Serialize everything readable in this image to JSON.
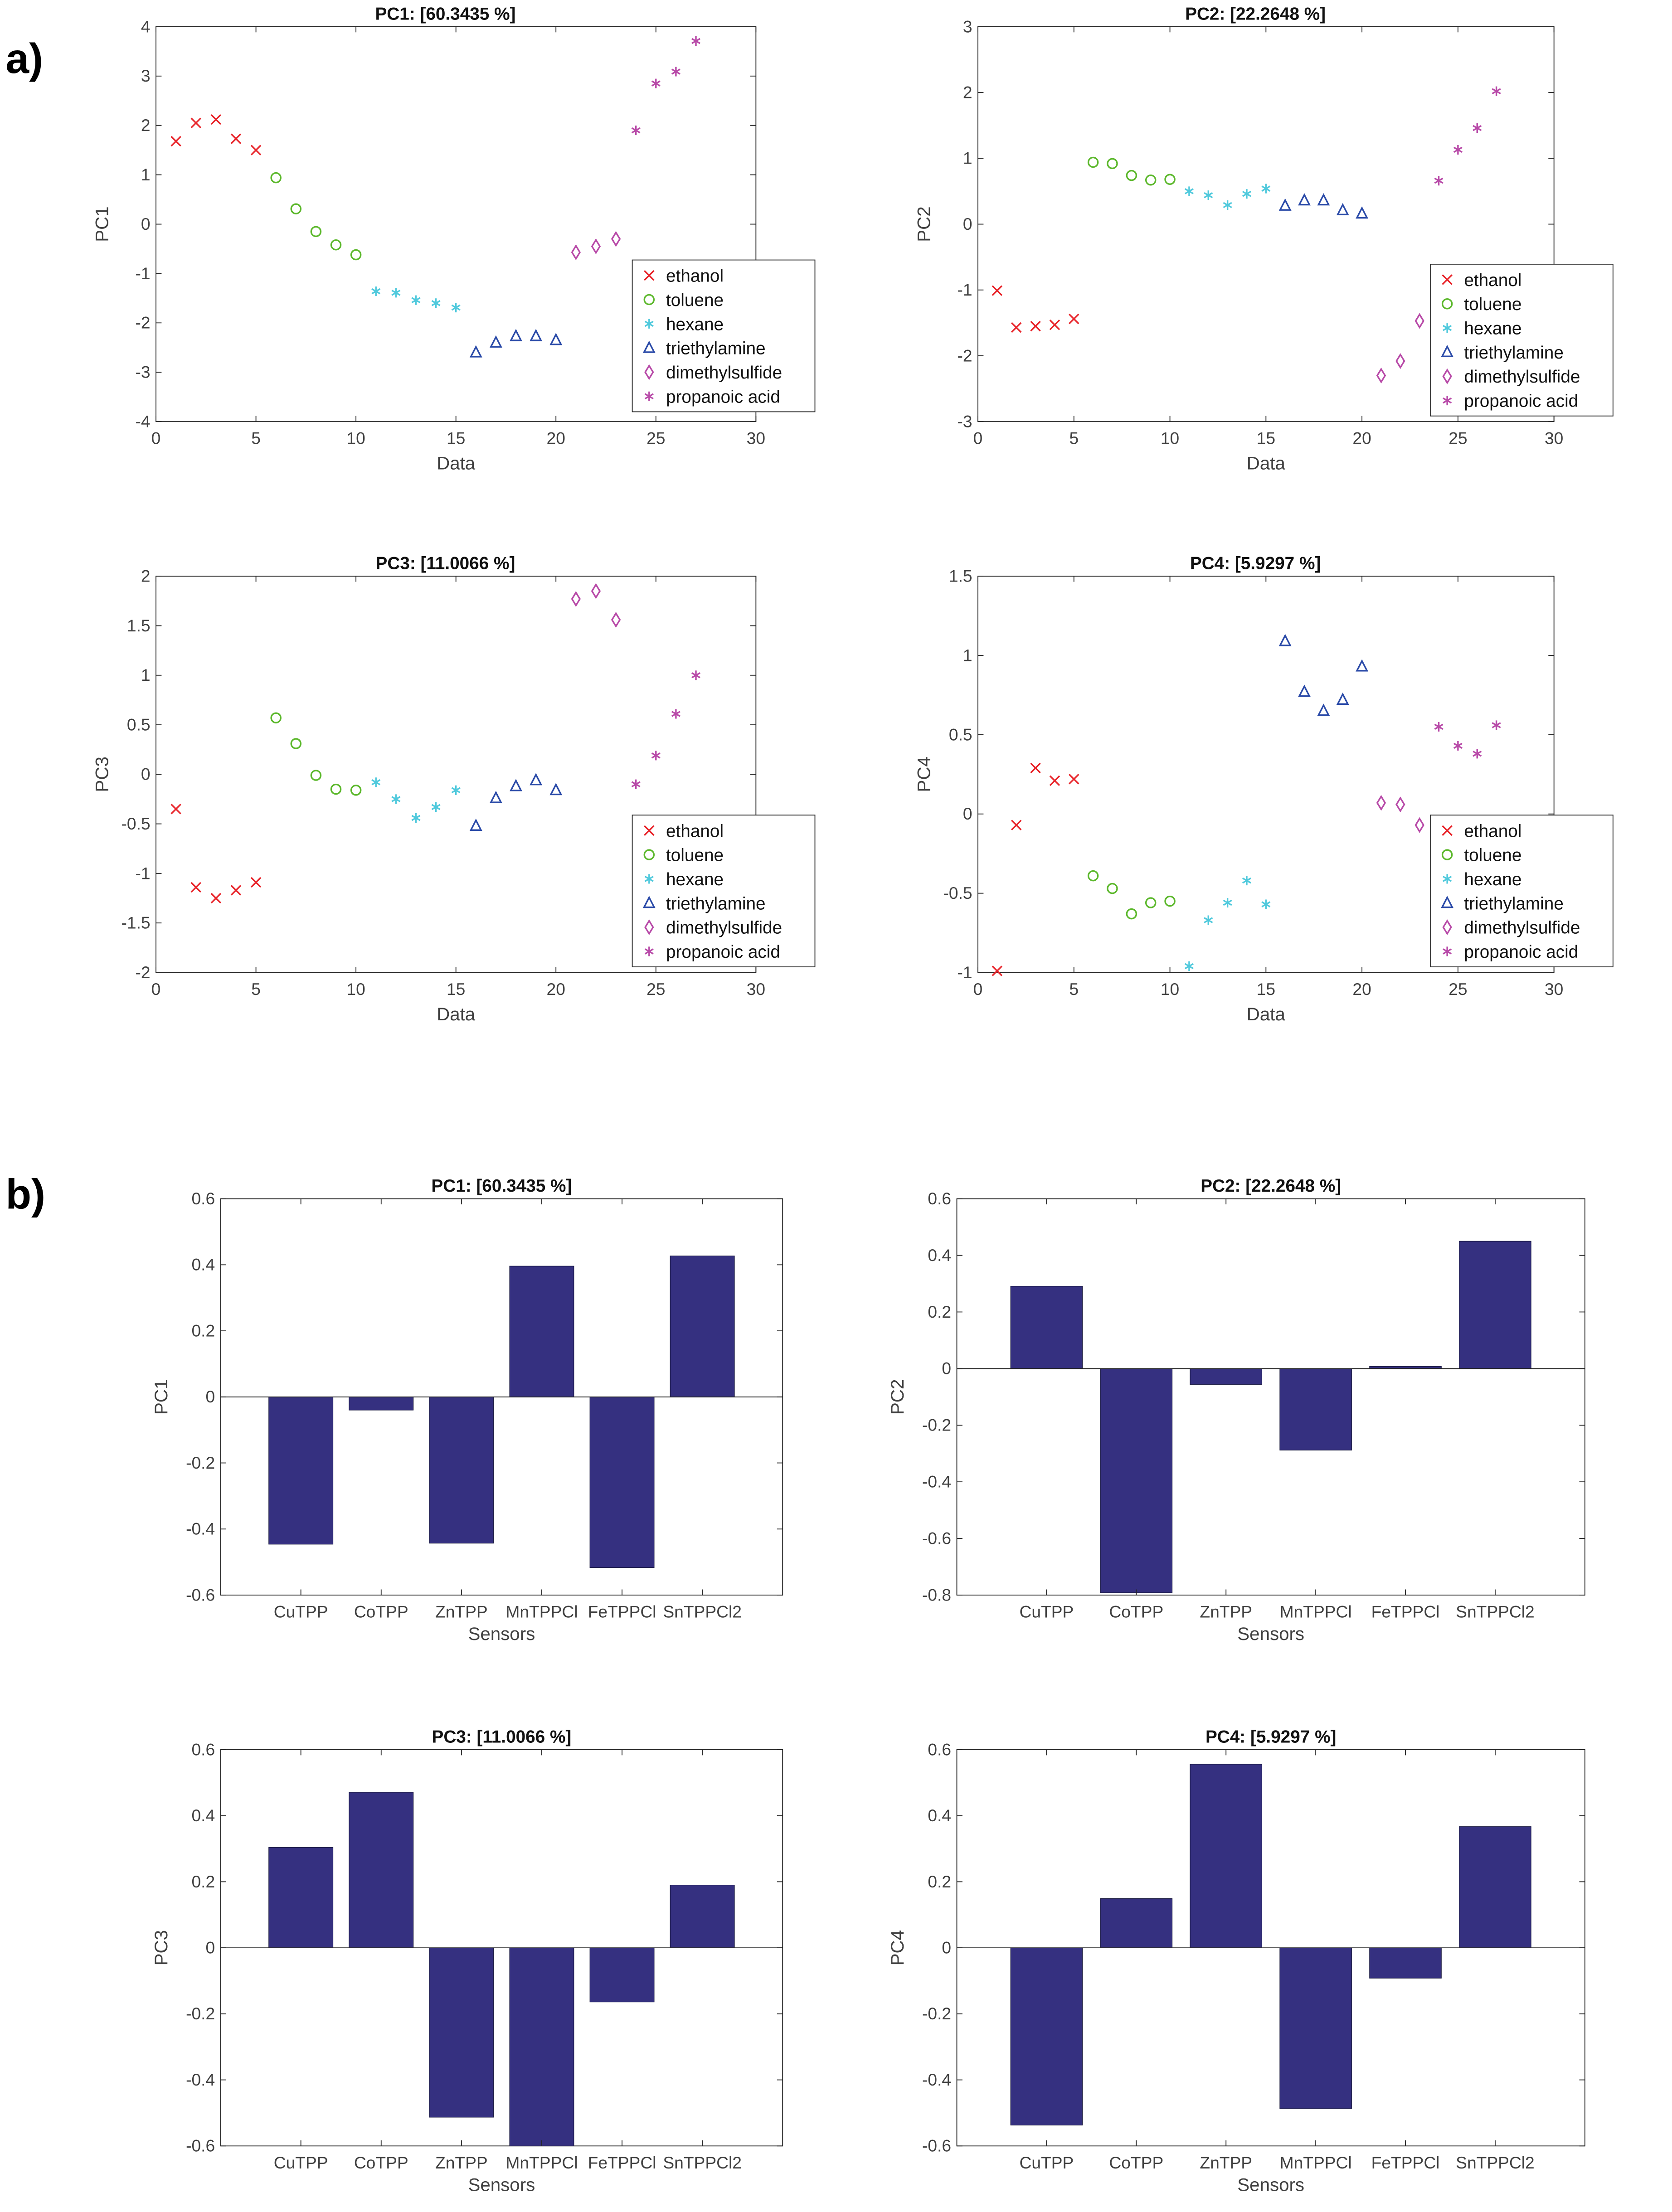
{
  "figure": {
    "panel_labels": [
      "a)",
      "b)"
    ]
  },
  "chart_data": [
    {
      "id": "a-pc1",
      "type": "scatter",
      "title": "PC1: [60.3435 %]",
      "xlabel": "Data",
      "ylabel": "PC1",
      "xlim": [
        0,
        30
      ],
      "ylim": [
        -4,
        4
      ],
      "xticks": [
        0,
        5,
        10,
        15,
        20,
        25,
        30
      ],
      "yticks": [
        -4,
        -3,
        -2,
        -1,
        0,
        1,
        2,
        3,
        4
      ],
      "grid": false,
      "legend": "bottom-right",
      "series": [
        {
          "name": "ethanol",
          "marker": "x",
          "color": "#e8242a",
          "x": [
            1,
            2,
            3,
            4,
            5
          ],
          "y": [
            1.68,
            2.05,
            2.12,
            1.73,
            1.5
          ]
        },
        {
          "name": "toluene",
          "marker": "o",
          "color": "#5cb82c",
          "x": [
            6,
            7,
            8,
            9,
            10
          ],
          "y": [
            0.94,
            0.31,
            -0.15,
            -0.42,
            -0.62
          ]
        },
        {
          "name": "hexane",
          "marker": "*",
          "color": "#4fc9dc",
          "x": [
            11,
            12,
            13,
            14,
            15
          ],
          "y": [
            -1.36,
            -1.39,
            -1.54,
            -1.6,
            -1.69
          ]
        },
        {
          "name": "triethylamine",
          "marker": "^",
          "color": "#2a4aa8",
          "x": [
            16,
            17,
            18,
            19,
            20
          ],
          "y": [
            -2.6,
            -2.4,
            -2.27,
            -2.27,
            -2.35
          ]
        },
        {
          "name": "dimethylsulfide",
          "marker": "d",
          "color": "#b84aa8",
          "x": [
            21,
            22,
            23
          ],
          "y": [
            -0.57,
            -0.45,
            -0.3
          ]
        },
        {
          "name": "propanoic acid",
          "marker": "*",
          "color": "#b84aa8",
          "x": [
            24,
            25,
            26,
            27
          ],
          "y": [
            1.9,
            2.85,
            3.09,
            3.71
          ]
        }
      ]
    },
    {
      "id": "a-pc2",
      "type": "scatter",
      "title": "PC2: [22.2648 %]",
      "xlabel": "Data",
      "ylabel": "PC2",
      "xlim": [
        0,
        30
      ],
      "ylim": [
        -3,
        3
      ],
      "xticks": [
        0,
        5,
        10,
        15,
        20,
        25,
        30
      ],
      "yticks": [
        -3,
        -2,
        -1,
        0,
        1,
        2,
        3
      ],
      "grid": false,
      "legend": "bottom-right",
      "series": [
        {
          "name": "ethanol",
          "marker": "x",
          "color": "#e8242a",
          "x": [
            1,
            2,
            3,
            4,
            5
          ],
          "y": [
            -1.01,
            -1.57,
            -1.55,
            -1.53,
            -1.44
          ]
        },
        {
          "name": "toluene",
          "marker": "o",
          "color": "#5cb82c",
          "x": [
            6,
            7,
            8,
            9,
            10
          ],
          "y": [
            0.94,
            0.92,
            0.74,
            0.67,
            0.68
          ]
        },
        {
          "name": "hexane",
          "marker": "*",
          "color": "#4fc9dc",
          "x": [
            11,
            12,
            13,
            14,
            15
          ],
          "y": [
            0.5,
            0.44,
            0.29,
            0.46,
            0.54
          ]
        },
        {
          "name": "triethylamine",
          "marker": "^",
          "color": "#2a4aa8",
          "x": [
            16,
            17,
            18,
            19,
            20
          ],
          "y": [
            0.28,
            0.36,
            0.36,
            0.21,
            0.16
          ]
        },
        {
          "name": "dimethylsulfide",
          "marker": "d",
          "color": "#b84aa8",
          "x": [
            21,
            22,
            23
          ],
          "y": [
            -2.3,
            -2.08,
            -1.47
          ]
        },
        {
          "name": "propanoic acid",
          "marker": "*",
          "color": "#b84aa8",
          "x": [
            24,
            25,
            26,
            27
          ],
          "y": [
            0.66,
            1.13,
            1.46,
            2.02
          ]
        }
      ]
    },
    {
      "id": "a-pc3",
      "type": "scatter",
      "title": "PC3: [11.0066 %]",
      "xlabel": "Data",
      "ylabel": "PC3",
      "xlim": [
        0,
        30
      ],
      "ylim": [
        -2,
        2
      ],
      "xticks": [
        0,
        5,
        10,
        15,
        20,
        25,
        30
      ],
      "yticks": [
        -2,
        -1.5,
        -1,
        -0.5,
        0,
        0.5,
        1,
        1.5,
        2
      ],
      "grid": false,
      "legend": "bottom-right",
      "series": [
        {
          "name": "ethanol",
          "marker": "x",
          "color": "#e8242a",
          "x": [
            1,
            2,
            3,
            4,
            5
          ],
          "y": [
            -0.35,
            -1.14,
            -1.25,
            -1.17,
            -1.09
          ]
        },
        {
          "name": "toluene",
          "marker": "o",
          "color": "#5cb82c",
          "x": [
            6,
            7,
            8,
            9,
            10
          ],
          "y": [
            0.57,
            0.31,
            -0.01,
            -0.15,
            -0.16
          ]
        },
        {
          "name": "hexane",
          "marker": "*",
          "color": "#4fc9dc",
          "x": [
            11,
            12,
            13,
            14,
            15
          ],
          "y": [
            -0.08,
            -0.25,
            -0.44,
            -0.33,
            -0.16
          ]
        },
        {
          "name": "triethylamine",
          "marker": "^",
          "color": "#2a4aa8",
          "x": [
            16,
            17,
            18,
            19,
            20
          ],
          "y": [
            -0.52,
            -0.24,
            -0.12,
            -0.06,
            -0.16
          ]
        },
        {
          "name": "dimethylsulfide",
          "marker": "d",
          "color": "#b84aa8",
          "x": [
            21,
            22,
            23
          ],
          "y": [
            1.77,
            1.85,
            1.56
          ]
        },
        {
          "name": "propanoic acid",
          "marker": "*",
          "color": "#b84aa8",
          "x": [
            24,
            25,
            26,
            27
          ],
          "y": [
            -0.1,
            0.19,
            0.61,
            1.0
          ]
        }
      ]
    },
    {
      "id": "a-pc4",
      "type": "scatter",
      "title": "PC4: [5.9297 %]",
      "xlabel": "Data",
      "ylabel": "PC4",
      "xlim": [
        0,
        30
      ],
      "ylim": [
        -1,
        1.5
      ],
      "xticks": [
        0,
        5,
        10,
        15,
        20,
        25,
        30
      ],
      "yticks": [
        -1,
        -0.5,
        0,
        0.5,
        1,
        1.5
      ],
      "grid": false,
      "legend": "bottom-right",
      "series": [
        {
          "name": "ethanol",
          "marker": "x",
          "color": "#e8242a",
          "x": [
            1,
            2,
            3,
            4,
            5
          ],
          "y": [
            -0.99,
            -0.07,
            0.29,
            0.21,
            0.22
          ]
        },
        {
          "name": "toluene",
          "marker": "o",
          "color": "#5cb82c",
          "x": [
            6,
            7,
            8,
            9,
            10
          ],
          "y": [
            -0.39,
            -0.47,
            -0.63,
            -0.56,
            -0.55
          ]
        },
        {
          "name": "hexane",
          "marker": "*",
          "color": "#4fc9dc",
          "x": [
            11,
            12,
            13,
            14,
            15
          ],
          "y": [
            -0.96,
            -0.67,
            -0.56,
            -0.42,
            -0.57
          ]
        },
        {
          "name": "triethylamine",
          "marker": "^",
          "color": "#2a4aa8",
          "x": [
            16,
            17,
            18,
            19,
            20
          ],
          "y": [
            1.09,
            0.77,
            0.65,
            0.72,
            0.93
          ]
        },
        {
          "name": "dimethylsulfide",
          "marker": "d",
          "color": "#b84aa8",
          "x": [
            21,
            22,
            23
          ],
          "y": [
            0.07,
            0.06,
            -0.07
          ]
        },
        {
          "name": "propanoic acid",
          "marker": "*",
          "color": "#b84aa8",
          "x": [
            24,
            25,
            26,
            27
          ],
          "y": [
            0.55,
            0.43,
            0.38,
            0.56
          ]
        }
      ]
    },
    {
      "id": "b-pc1",
      "type": "bar",
      "title": "PC1: [60.3435 %]",
      "xlabel": "Sensors",
      "ylabel": "PC1",
      "categories": [
        "CuTPP",
        "CoTPP",
        "ZnTPP",
        "MnTPPCl",
        "FeTPPCl",
        "SnTPPCl2"
      ],
      "values": [
        -0.446,
        -0.04,
        -0.443,
        0.396,
        -0.517,
        0.427
      ],
      "ylim": [
        -0.6,
        0.6
      ],
      "yticks": [
        -0.6,
        -0.4,
        -0.2,
        0,
        0.2,
        0.4,
        0.6
      ],
      "bar_color": "#353080",
      "grid": false
    },
    {
      "id": "b-pc2",
      "type": "bar",
      "title": "PC2: [22.2648 %]",
      "xlabel": "Sensors",
      "ylabel": "PC2",
      "categories": [
        "CuTPP",
        "CoTPP",
        "ZnTPP",
        "MnTPPCl",
        "FeTPPCl",
        "SnTPPCl2"
      ],
      "values": [
        0.291,
        -0.792,
        -0.056,
        -0.288,
        0.008,
        0.45
      ],
      "ylim": [
        -0.8,
        0.6
      ],
      "yticks": [
        -0.8,
        -0.6,
        -0.4,
        -0.2,
        0,
        0.2,
        0.4,
        0.6
      ],
      "bar_color": "#353080",
      "grid": false
    },
    {
      "id": "b-pc3",
      "type": "bar",
      "title": "PC3: [11.0066 %]",
      "xlabel": "Sensors",
      "ylabel": "PC3",
      "categories": [
        "CuTPP",
        "CoTPP",
        "ZnTPP",
        "MnTPPCl",
        "FeTPPCl",
        "SnTPPCl2"
      ],
      "values": [
        0.304,
        0.471,
        -0.513,
        -0.6,
        -0.164,
        0.19
      ],
      "ylim": [
        -0.6,
        0.6
      ],
      "yticks": [
        -0.6,
        -0.4,
        -0.2,
        0,
        0.2,
        0.4,
        0.6
      ],
      "bar_color": "#353080",
      "grid": false
    },
    {
      "id": "b-pc4",
      "type": "bar",
      "title": "PC4: [5.9297 %]",
      "xlabel": "Sensors",
      "ylabel": "PC4",
      "categories": [
        "CuTPP",
        "CoTPP",
        "ZnTPP",
        "MnTPPCl",
        "FeTPPCl",
        "SnTPPCl2"
      ],
      "values": [
        -0.537,
        0.149,
        0.556,
        -0.487,
        -0.092,
        0.367
      ],
      "ylim": [
        -0.6,
        0.6
      ],
      "yticks": [
        -0.6,
        -0.4,
        -0.2,
        0,
        0.2,
        0.4,
        0.6
      ],
      "bar_color": "#353080",
      "grid": false
    }
  ]
}
